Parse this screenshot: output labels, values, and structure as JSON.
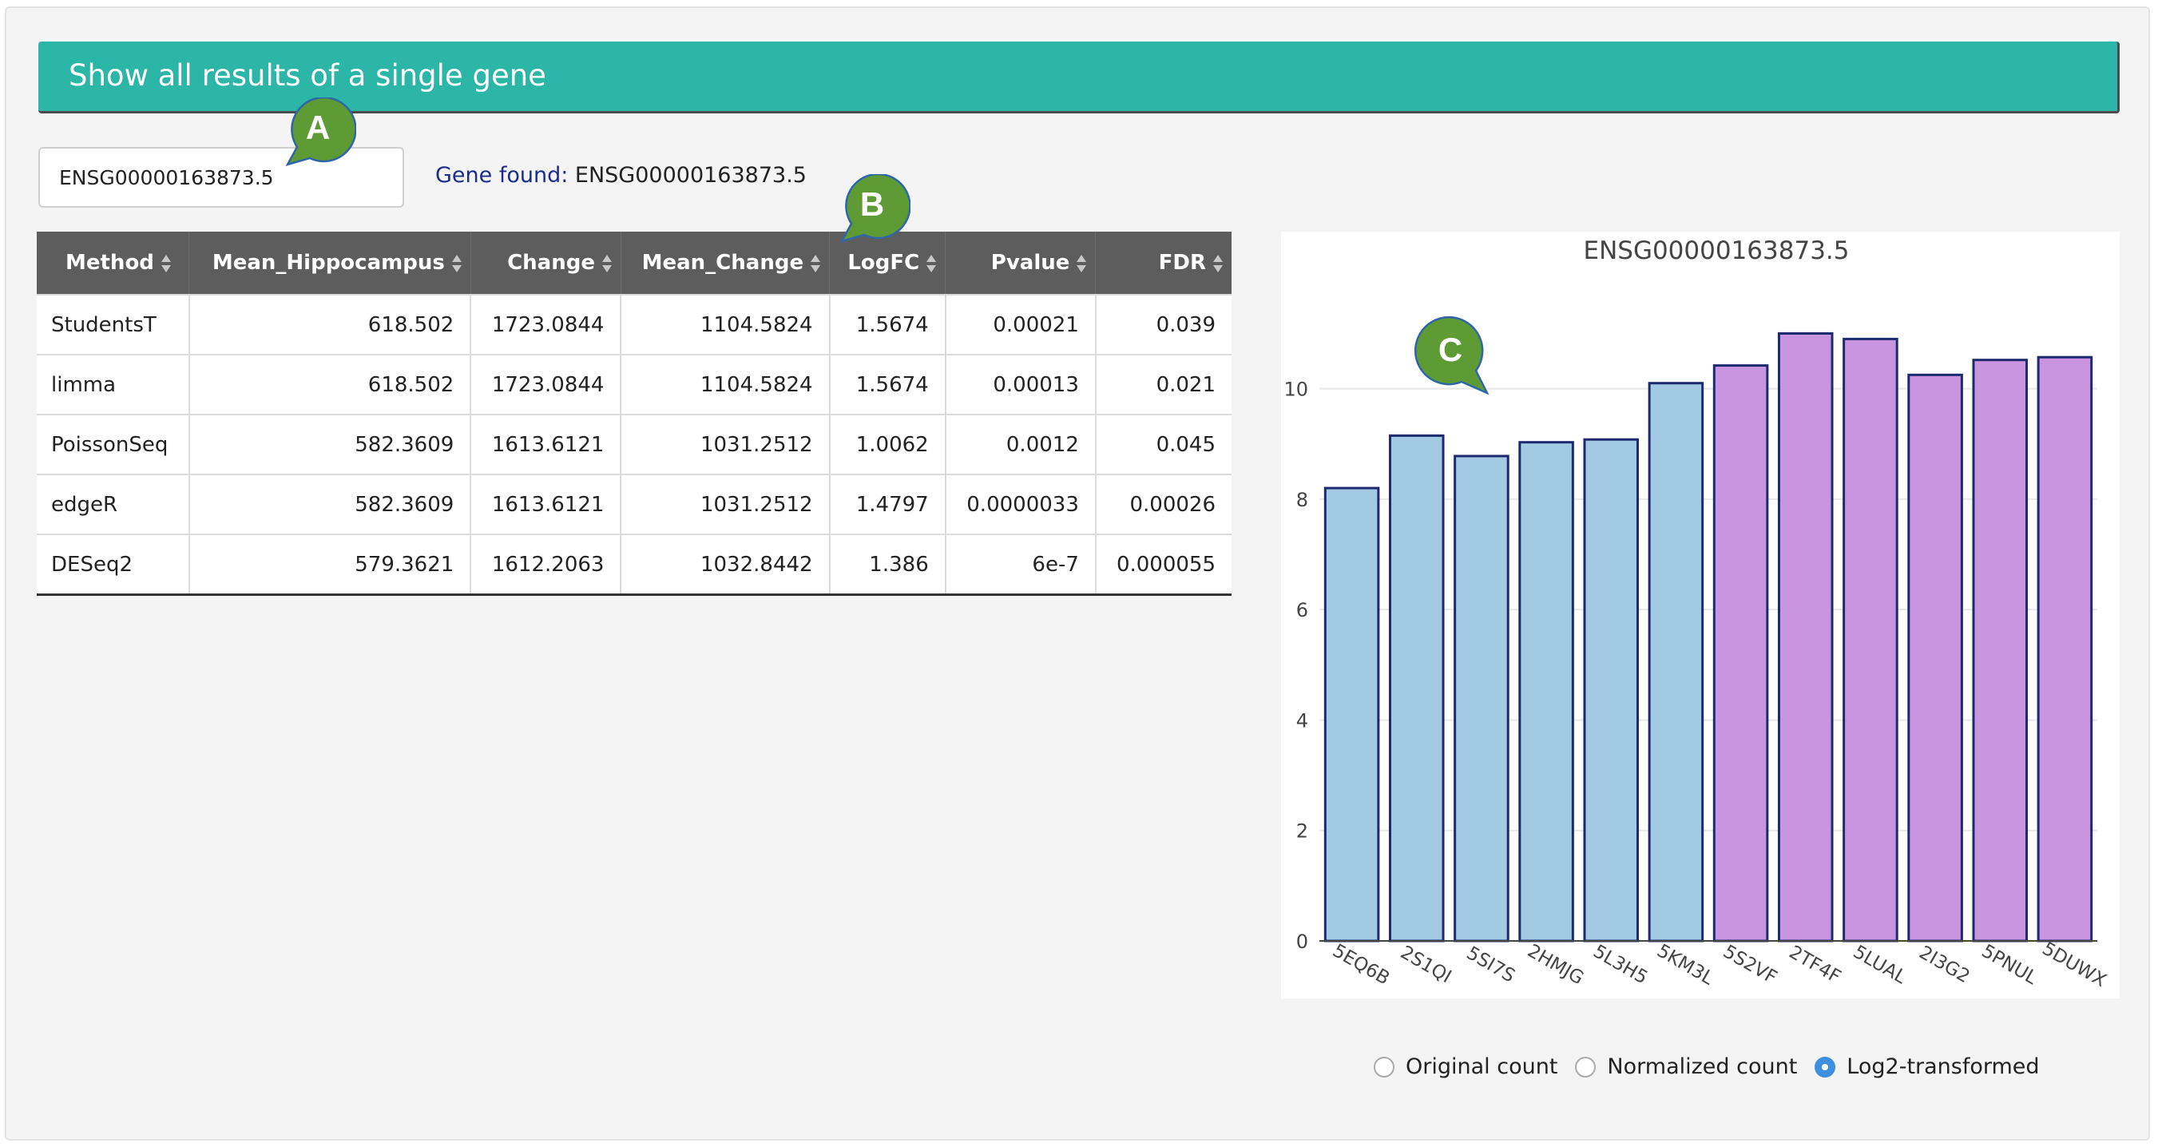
{
  "header": {
    "title": "Show all results of a single gene"
  },
  "search": {
    "value": "ENSG00000163873.5"
  },
  "gene_found": {
    "label": "Gene found:",
    "value": " ENSG00000163873.5"
  },
  "table": {
    "columns": [
      "Method",
      "Mean_Hippocampus",
      "Change",
      "Mean_Change",
      "LogFC",
      "Pvalue",
      "FDR"
    ],
    "rows": [
      [
        "StudentsT",
        "618.502",
        "1723.0844",
        "1104.5824",
        "1.5674",
        "0.00021",
        "0.039"
      ],
      [
        "limma",
        "618.502",
        "1723.0844",
        "1104.5824",
        "1.5674",
        "0.00013",
        "0.021"
      ],
      [
        "PoissonSeq",
        "582.3609",
        "1613.6121",
        "1031.2512",
        "1.0062",
        "0.0012",
        "0.045"
      ],
      [
        "edgeR",
        "582.3609",
        "1613.6121",
        "1031.2512",
        "1.4797",
        "0.0000033",
        "0.00026"
      ],
      [
        "DESeq2",
        "579.3621",
        "1612.2063",
        "1032.8442",
        "1.386",
        "6e-7",
        "0.000055"
      ]
    ]
  },
  "annotations": {
    "a": "A",
    "b": "B",
    "c": "C"
  },
  "chart_data": {
    "type": "bar",
    "title": "ENSG00000163873.5",
    "categories": [
      "5EQ6B",
      "2S1QI",
      "5SI7S",
      "2HMJG",
      "5L3H5",
      "5KM3L",
      "5S2VF",
      "2TF4F",
      "5LUAL",
      "2I3G2",
      "5PNUL",
      "5DUWX"
    ],
    "values": [
      8.2,
      9.15,
      8.78,
      9.03,
      9.08,
      10.1,
      10.42,
      11.0,
      10.9,
      10.25,
      10.52,
      10.57
    ],
    "colors": [
      "#a3cae3",
      "#a3cae3",
      "#a3cae3",
      "#a3cae3",
      "#a3cae3",
      "#a3cae3",
      "#c995e0",
      "#c995e0",
      "#c995e0",
      "#c995e0",
      "#c995e0",
      "#c995e0"
    ],
    "yticks": [
      0,
      2,
      4,
      6,
      8,
      10
    ],
    "ylim": [
      0,
      11.6
    ],
    "xlabel": "",
    "ylabel": "",
    "grid": true,
    "outline_color": "#1d2a6e"
  },
  "radio": {
    "options": [
      "Original count",
      "Normalized count",
      "Log2-transformed"
    ],
    "selected": 2
  }
}
